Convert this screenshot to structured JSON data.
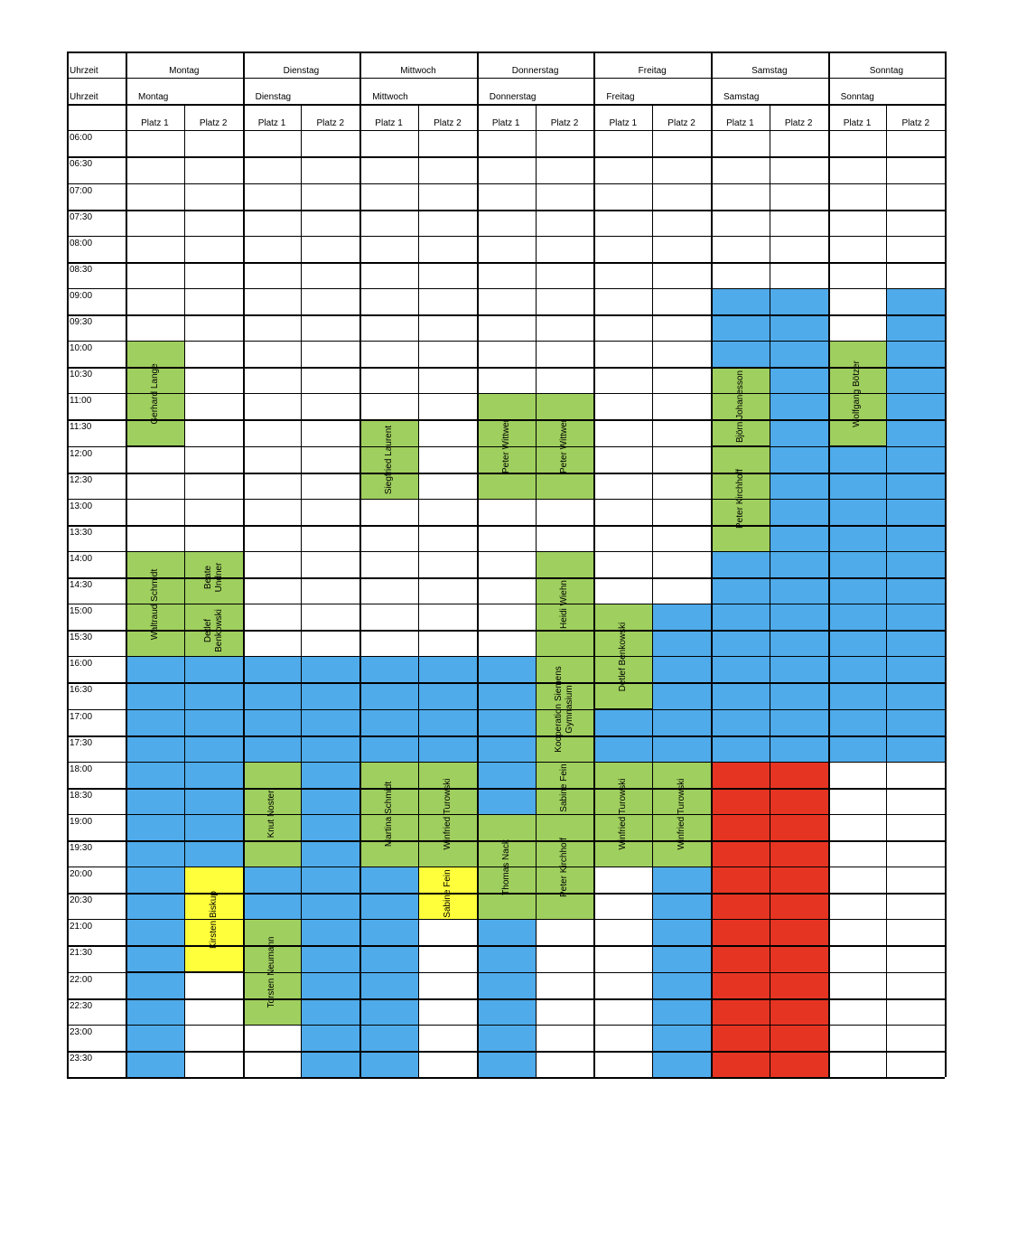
{
  "colors": {
    "blue": "#4fabea",
    "green": "#9fcf5e",
    "yellow": "#ffff3c",
    "red": "#e63423",
    "grid": "#000000"
  },
  "header": {
    "corner_label": "Uhrzeit",
    "days": [
      "Montag",
      "Dienstag",
      "Mittwoch",
      "Donnerstag",
      "Freitag",
      "Samstag",
      "Sonntag"
    ],
    "places": [
      "Platz 1",
      "Platz 2"
    ]
  },
  "times": [
    "06:00",
    "06:30",
    "07:00",
    "07:30",
    "08:00",
    "08:30",
    "09:00",
    "09:30",
    "10:00",
    "10:30",
    "11:00",
    "11:30",
    "12:00",
    "12:30",
    "13:00",
    "13:30",
    "14:00",
    "14:30",
    "15:00",
    "15:30",
    "16:00",
    "16:30",
    "17:00",
    "17:30",
    "18:00",
    "18:30",
    "19:00",
    "19:30",
    "20:00",
    "20:30",
    "21:00",
    "21:30",
    "22:00",
    "22:30",
    "23:00",
    "23:30"
  ],
  "bookings": [
    {
      "col": 0,
      "start": "10:00",
      "end": "12:00",
      "color": "green",
      "label": "Gerhard Lange"
    },
    {
      "col": 0,
      "start": "14:00",
      "end": "16:00",
      "color": "green",
      "label": "Waltraud Schmidt"
    },
    {
      "col": 0,
      "start": "16:00",
      "end": "20:00",
      "color": "blue",
      "label": ""
    },
    {
      "col": 0,
      "start": "20:00",
      "end": "22:00",
      "color": "blue",
      "label": ""
    },
    {
      "col": 0,
      "start": "22:00",
      "end": "24:00",
      "color": "blue",
      "label": ""
    },
    {
      "col": 1,
      "start": "14:00",
      "end": "15:00",
      "color": "green",
      "label": "Beate\nUndner"
    },
    {
      "col": 1,
      "start": "15:00",
      "end": "16:00",
      "color": "green",
      "label": "Detlef\nBenkowski"
    },
    {
      "col": 1,
      "start": "16:00",
      "end": "20:00",
      "color": "blue",
      "label": ""
    },
    {
      "col": 1,
      "start": "20:00",
      "end": "22:00",
      "color": "yellow",
      "label": "Kirsten Biskup"
    },
    {
      "col": 2,
      "start": "16:00",
      "end": "18:00",
      "color": "blue",
      "label": ""
    },
    {
      "col": 2,
      "start": "18:00",
      "end": "20:00",
      "color": "green",
      "label": "Knut Noster"
    },
    {
      "col": 2,
      "start": "20:00",
      "end": "21:00",
      "color": "blue",
      "label": ""
    },
    {
      "col": 2,
      "start": "21:00",
      "end": "23:00",
      "color": "green",
      "label": "Torsten Neumann"
    },
    {
      "col": 3,
      "start": "16:00",
      "end": "24:00",
      "color": "blue",
      "label": ""
    },
    {
      "col": 4,
      "start": "11:30",
      "end": "13:00",
      "color": "green",
      "label": "Siegfried Laurent"
    },
    {
      "col": 4,
      "start": "16:00",
      "end": "18:00",
      "color": "blue",
      "label": ""
    },
    {
      "col": 4,
      "start": "18:00",
      "end": "20:00",
      "color": "green",
      "label": "Martina Schmidt"
    },
    {
      "col": 4,
      "start": "20:00",
      "end": "24:00",
      "color": "blue",
      "label": ""
    },
    {
      "col": 5,
      "start": "16:00",
      "end": "18:00",
      "color": "blue",
      "label": ""
    },
    {
      "col": 5,
      "start": "18:00",
      "end": "20:00",
      "color": "green",
      "label": "Winfried Turowski"
    },
    {
      "col": 5,
      "start": "20:00",
      "end": "21:00",
      "color": "yellow",
      "label": "Sabine Fein"
    },
    {
      "col": 6,
      "start": "11:00",
      "end": "13:00",
      "color": "green",
      "label": "Peter Wittwer"
    },
    {
      "col": 6,
      "start": "16:00",
      "end": "19:00",
      "color": "blue",
      "label": ""
    },
    {
      "col": 6,
      "start": "19:00",
      "end": "21:00",
      "color": "green",
      "label": "Thomas Nack"
    },
    {
      "col": 6,
      "start": "21:00",
      "end": "21:30",
      "color": "blue",
      "label": ""
    },
    {
      "col": 6,
      "start": "21:30",
      "end": "24:00",
      "color": "blue",
      "label": ""
    },
    {
      "col": 7,
      "start": "11:00",
      "end": "13:00",
      "color": "green",
      "label": "Peter Wittwer"
    },
    {
      "col": 7,
      "start": "14:00",
      "end": "16:00",
      "color": "green",
      "label": "Heidi Wiehn"
    },
    {
      "col": 7,
      "start": "16:00",
      "end": "18:00",
      "color": "green",
      "label": "Kooperation Siemens\nGymnasium"
    },
    {
      "col": 7,
      "start": "18:00",
      "end": "19:00",
      "color": "green",
      "label": "Sabine Fein"
    },
    {
      "col": 7,
      "start": "19:00",
      "end": "21:00",
      "color": "green",
      "label": "Peter Kirchhoff"
    },
    {
      "col": 8,
      "start": "15:00",
      "end": "17:00",
      "color": "green",
      "label": "Detlef Benkowski"
    },
    {
      "col": 8,
      "start": "17:00",
      "end": "18:00",
      "color": "blue",
      "label": ""
    },
    {
      "col": 8,
      "start": "18:00",
      "end": "20:00",
      "color": "green",
      "label": "Winfried Turowski"
    },
    {
      "col": 9,
      "start": "15:00",
      "end": "18:00",
      "color": "blue",
      "label": ""
    },
    {
      "col": 9,
      "start": "18:00",
      "end": "20:00",
      "color": "green",
      "label": "Winfried Turowski"
    },
    {
      "col": 9,
      "start": "20:00",
      "end": "24:00",
      "color": "blue",
      "label": ""
    },
    {
      "col": 10,
      "start": "09:00",
      "end": "10:30",
      "color": "blue",
      "label": ""
    },
    {
      "col": 10,
      "start": "10:30",
      "end": "12:00",
      "color": "green",
      "label": "Björn Johanesson"
    },
    {
      "col": 10,
      "start": "12:00",
      "end": "14:00",
      "color": "green",
      "label": "Peter Kirchhoff"
    },
    {
      "col": 10,
      "start": "14:00",
      "end": "18:00",
      "color": "blue",
      "label": ""
    },
    {
      "col": 10,
      "start": "18:00",
      "end": "24:00",
      "color": "red",
      "label": ""
    },
    {
      "col": 11,
      "start": "09:00",
      "end": "18:00",
      "color": "blue",
      "label": ""
    },
    {
      "col": 11,
      "start": "18:00",
      "end": "24:00",
      "color": "red",
      "label": ""
    },
    {
      "col": 12,
      "start": "10:00",
      "end": "12:00",
      "color": "green",
      "label": "Wolfgang Bötzer"
    },
    {
      "col": 12,
      "start": "12:00",
      "end": "18:00",
      "color": "blue",
      "label": ""
    },
    {
      "col": 13,
      "start": "09:00",
      "end": "18:00",
      "color": "blue",
      "label": ""
    }
  ]
}
